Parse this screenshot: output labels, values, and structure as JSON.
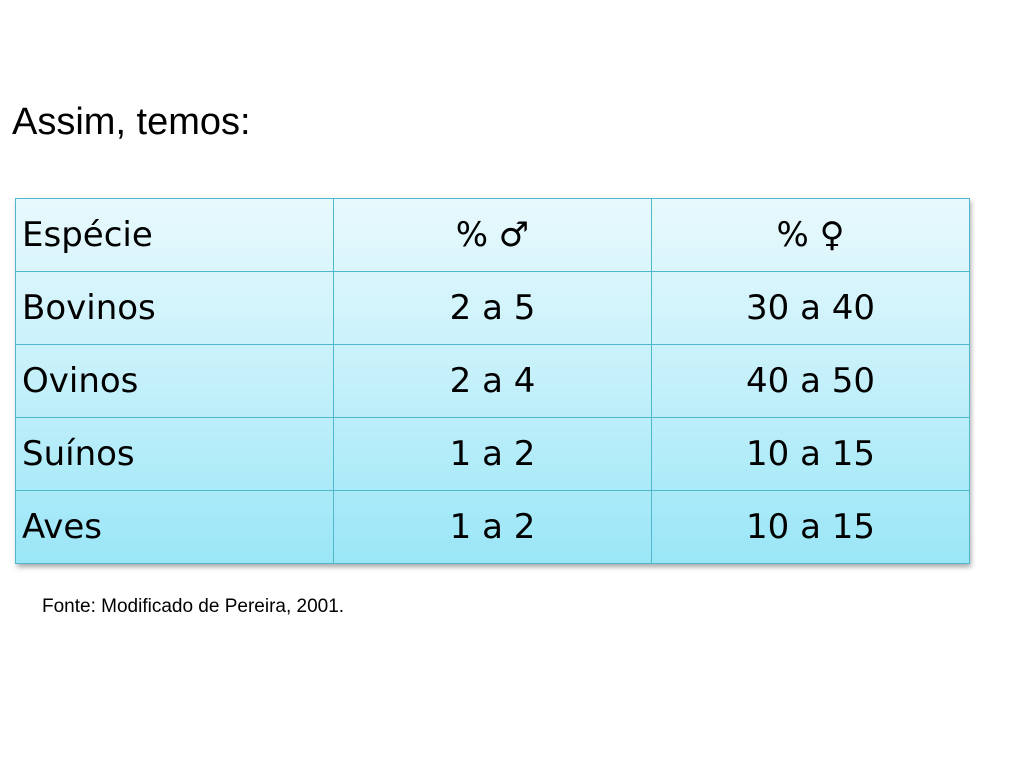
{
  "title": "Assim, temos:",
  "table": {
    "header": [
      "Espécie",
      "% ♂",
      "% ♀"
    ],
    "rows": [
      [
        "Bovinos",
        "2 a 5",
        "30 a 40"
      ],
      [
        "Ovinos",
        "2 a 4",
        "40 a 50"
      ],
      [
        "Suínos",
        "1 a 2",
        "10 a 15"
      ],
      [
        "Aves",
        "1 a 2",
        "10 a 15"
      ]
    ]
  },
  "source": "Fonte: Modificado de Pereira, 2001.",
  "colors": {
    "cell_gradient_top": "#e8f9fd",
    "cell_gradient_bottom": "#9ae6f7",
    "border": "#4fb8cc"
  }
}
